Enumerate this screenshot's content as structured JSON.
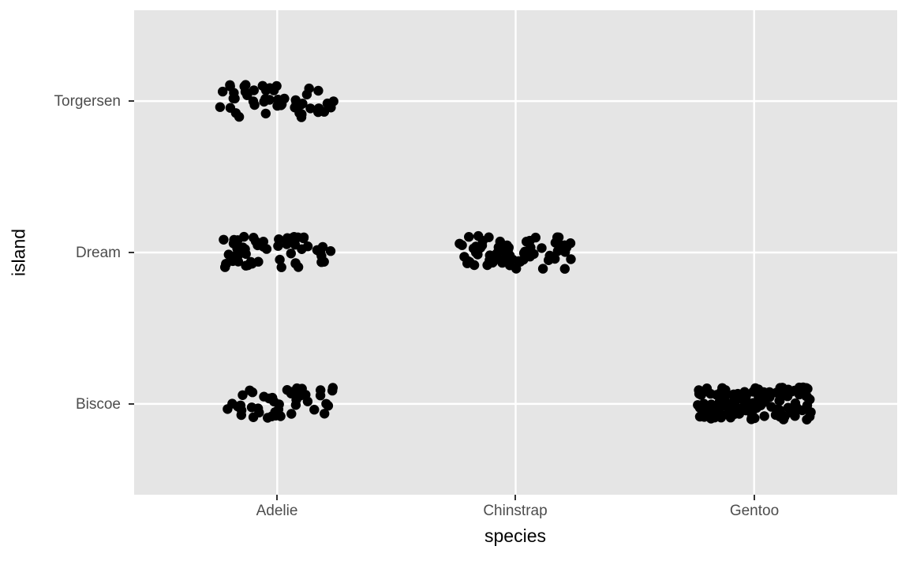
{
  "chart_data": {
    "type": "scatter",
    "subtype": "jitter",
    "title": "",
    "xlabel": "species",
    "ylabel": "island",
    "x_categories": [
      "Adelie",
      "Chinstrap",
      "Gentoo"
    ],
    "y_categories_top_to_bottom": [
      "Torgersen",
      "Dream",
      "Biscoe"
    ],
    "series": [
      {
        "x": "Adelie",
        "y": "Torgersen",
        "count": 52
      },
      {
        "x": "Adelie",
        "y": "Dream",
        "count": 56
      },
      {
        "x": "Adelie",
        "y": "Biscoe",
        "count": 44
      },
      {
        "x": "Chinstrap",
        "y": "Dream",
        "count": 68
      },
      {
        "x": "Gentoo",
        "y": "Biscoe",
        "count": 124
      }
    ],
    "legend": "none",
    "grid": "major-only",
    "axis_expansion_units": 0.6,
    "jitter": {
      "width_frac": 0.24,
      "height_frac": 0.11
    },
    "point_radius_px": 6.2,
    "point_color": "#000000",
    "panel_background": "#E5E5E5",
    "grid_color": "#FFFFFF",
    "tick_label_color": "#4D4D4D",
    "axis_title_color": "#000000",
    "tick_mark_color": "#333333"
  }
}
